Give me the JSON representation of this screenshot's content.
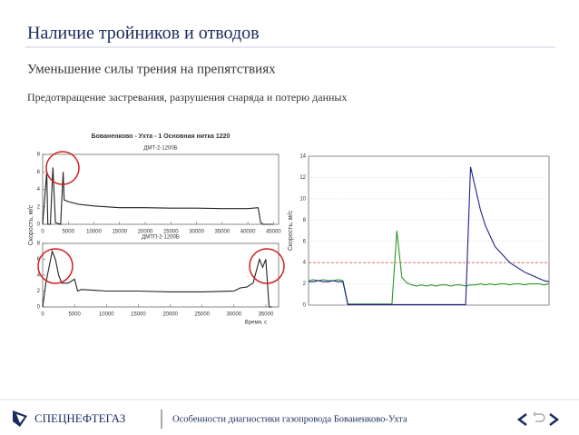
{
  "slide": {
    "title": "Наличие тройников и отводов",
    "subtitle": "Уменьшение силы трения на препятствиях",
    "text": "Предотвращение застревания, разрушения снаряда и потерю данных"
  },
  "footer": {
    "logo": "СПЕЦНЕФТЕГАЗ",
    "caption": "Особенности диагностики газопровода Бованенково-Ухта"
  },
  "chart_data": [
    {
      "type": "line",
      "title": "Бованенково - Ухта - 1 Основная нитка 1220",
      "subtitle": "ДМТ-2-1200Б",
      "x": [
        0,
        800,
        1000,
        1500,
        2000,
        2500,
        3500,
        4000,
        4200,
        5000,
        7000,
        10000,
        15000,
        20000,
        25000,
        30000,
        35000,
        40000,
        42000,
        42500,
        43000,
        45000
      ],
      "series": [
        {
          "color": "#222222",
          "values": [
            0,
            6,
            0,
            0,
            6.5,
            0.2,
            0,
            6,
            2.8,
            2.6,
            2.3,
            2.1,
            1.9,
            1.9,
            1.85,
            1.85,
            1.8,
            1.8,
            1.9,
            0.2,
            0,
            0
          ]
        }
      ],
      "xlim": [
        0,
        46000
      ],
      "xticks": [
        0,
        5000,
        10000,
        15000,
        20000,
        25000,
        30000,
        35000,
        40000,
        45000
      ],
      "ylim": [
        0,
        8
      ],
      "yticks": [
        0,
        2,
        4,
        6,
        8
      ],
      "grid": false
    },
    {
      "type": "line",
      "subtitle": "ДМТП-2-1200Б",
      "xlabel": "Время, с",
      "ylabel": "Скорость, м/с",
      "x": [
        0,
        500,
        1000,
        1500,
        2000,
        2500,
        3000,
        4000,
        5000,
        5500,
        6000,
        8000,
        10000,
        15000,
        20000,
        25000,
        30000,
        31000,
        32000,
        33000,
        34000,
        34500,
        35000,
        35500,
        36000
      ],
      "series": [
        {
          "color": "#222222",
          "values": [
            0,
            3,
            5,
            7,
            6,
            4,
            3,
            3,
            3.5,
            2,
            2.2,
            2.1,
            2,
            2,
            1.9,
            1.9,
            2,
            2.4,
            2.5,
            3,
            6,
            5,
            6,
            0,
            0
          ]
        }
      ],
      "xlim": [
        0,
        37000
      ],
      "xticks": [
        0,
        5000,
        10000,
        15000,
        20000,
        25000,
        30000,
        35000
      ],
      "ylim": [
        0,
        8
      ],
      "yticks": [
        0,
        2,
        4,
        6,
        8
      ],
      "grid": false
    },
    {
      "type": "line",
      "ylabel": "Скорость, м/с",
      "series": [
        {
          "color": "#2a9a2a",
          "values": [
            2.3,
            2.4,
            2.3,
            2.4,
            2.3,
            2.3,
            2.4,
            2.3,
            0.1,
            0.1,
            0.1,
            0.1,
            0.1,
            0.1,
            0.1,
            0.1,
            0.1,
            0.1,
            7,
            2.6,
            2.1,
            1.9,
            1.8,
            1.9,
            1.8,
            1.9,
            1.8,
            1.9,
            1.9,
            1.8,
            1.9,
            1.9,
            1.8,
            1.9,
            1.9,
            2,
            1.9,
            2,
            1.9,
            2,
            2,
            1.9,
            2,
            2,
            1.9,
            2,
            2,
            2,
            1.9,
            2
          ]
        },
        {
          "color": "#1f1f8a",
          "values": [
            2.2,
            2.2,
            2.3,
            2.2,
            2.2,
            2.3,
            2.2,
            2.2,
            0.05,
            0.05,
            0.05,
            0.05,
            0.05,
            0.05,
            0.05,
            0.05,
            0.05,
            0.05,
            0.05,
            0.05,
            0.05,
            0.05,
            0.05,
            0.05,
            0.05,
            0.05,
            0.05,
            0.05,
            0.05,
            0.05,
            0.05,
            0.05,
            0.05,
            13,
            11,
            9,
            7.5,
            6.5,
            5.5,
            5,
            4.5,
            4,
            3.7,
            3.4,
            3.1,
            2.9,
            2.7,
            2.5,
            2.3,
            2.2
          ]
        }
      ],
      "threshold": 4,
      "ylim": [
        0,
        14
      ],
      "yticks": [
        0,
        2,
        4,
        6,
        8,
        10,
        12,
        14
      ],
      "grid": true
    }
  ]
}
